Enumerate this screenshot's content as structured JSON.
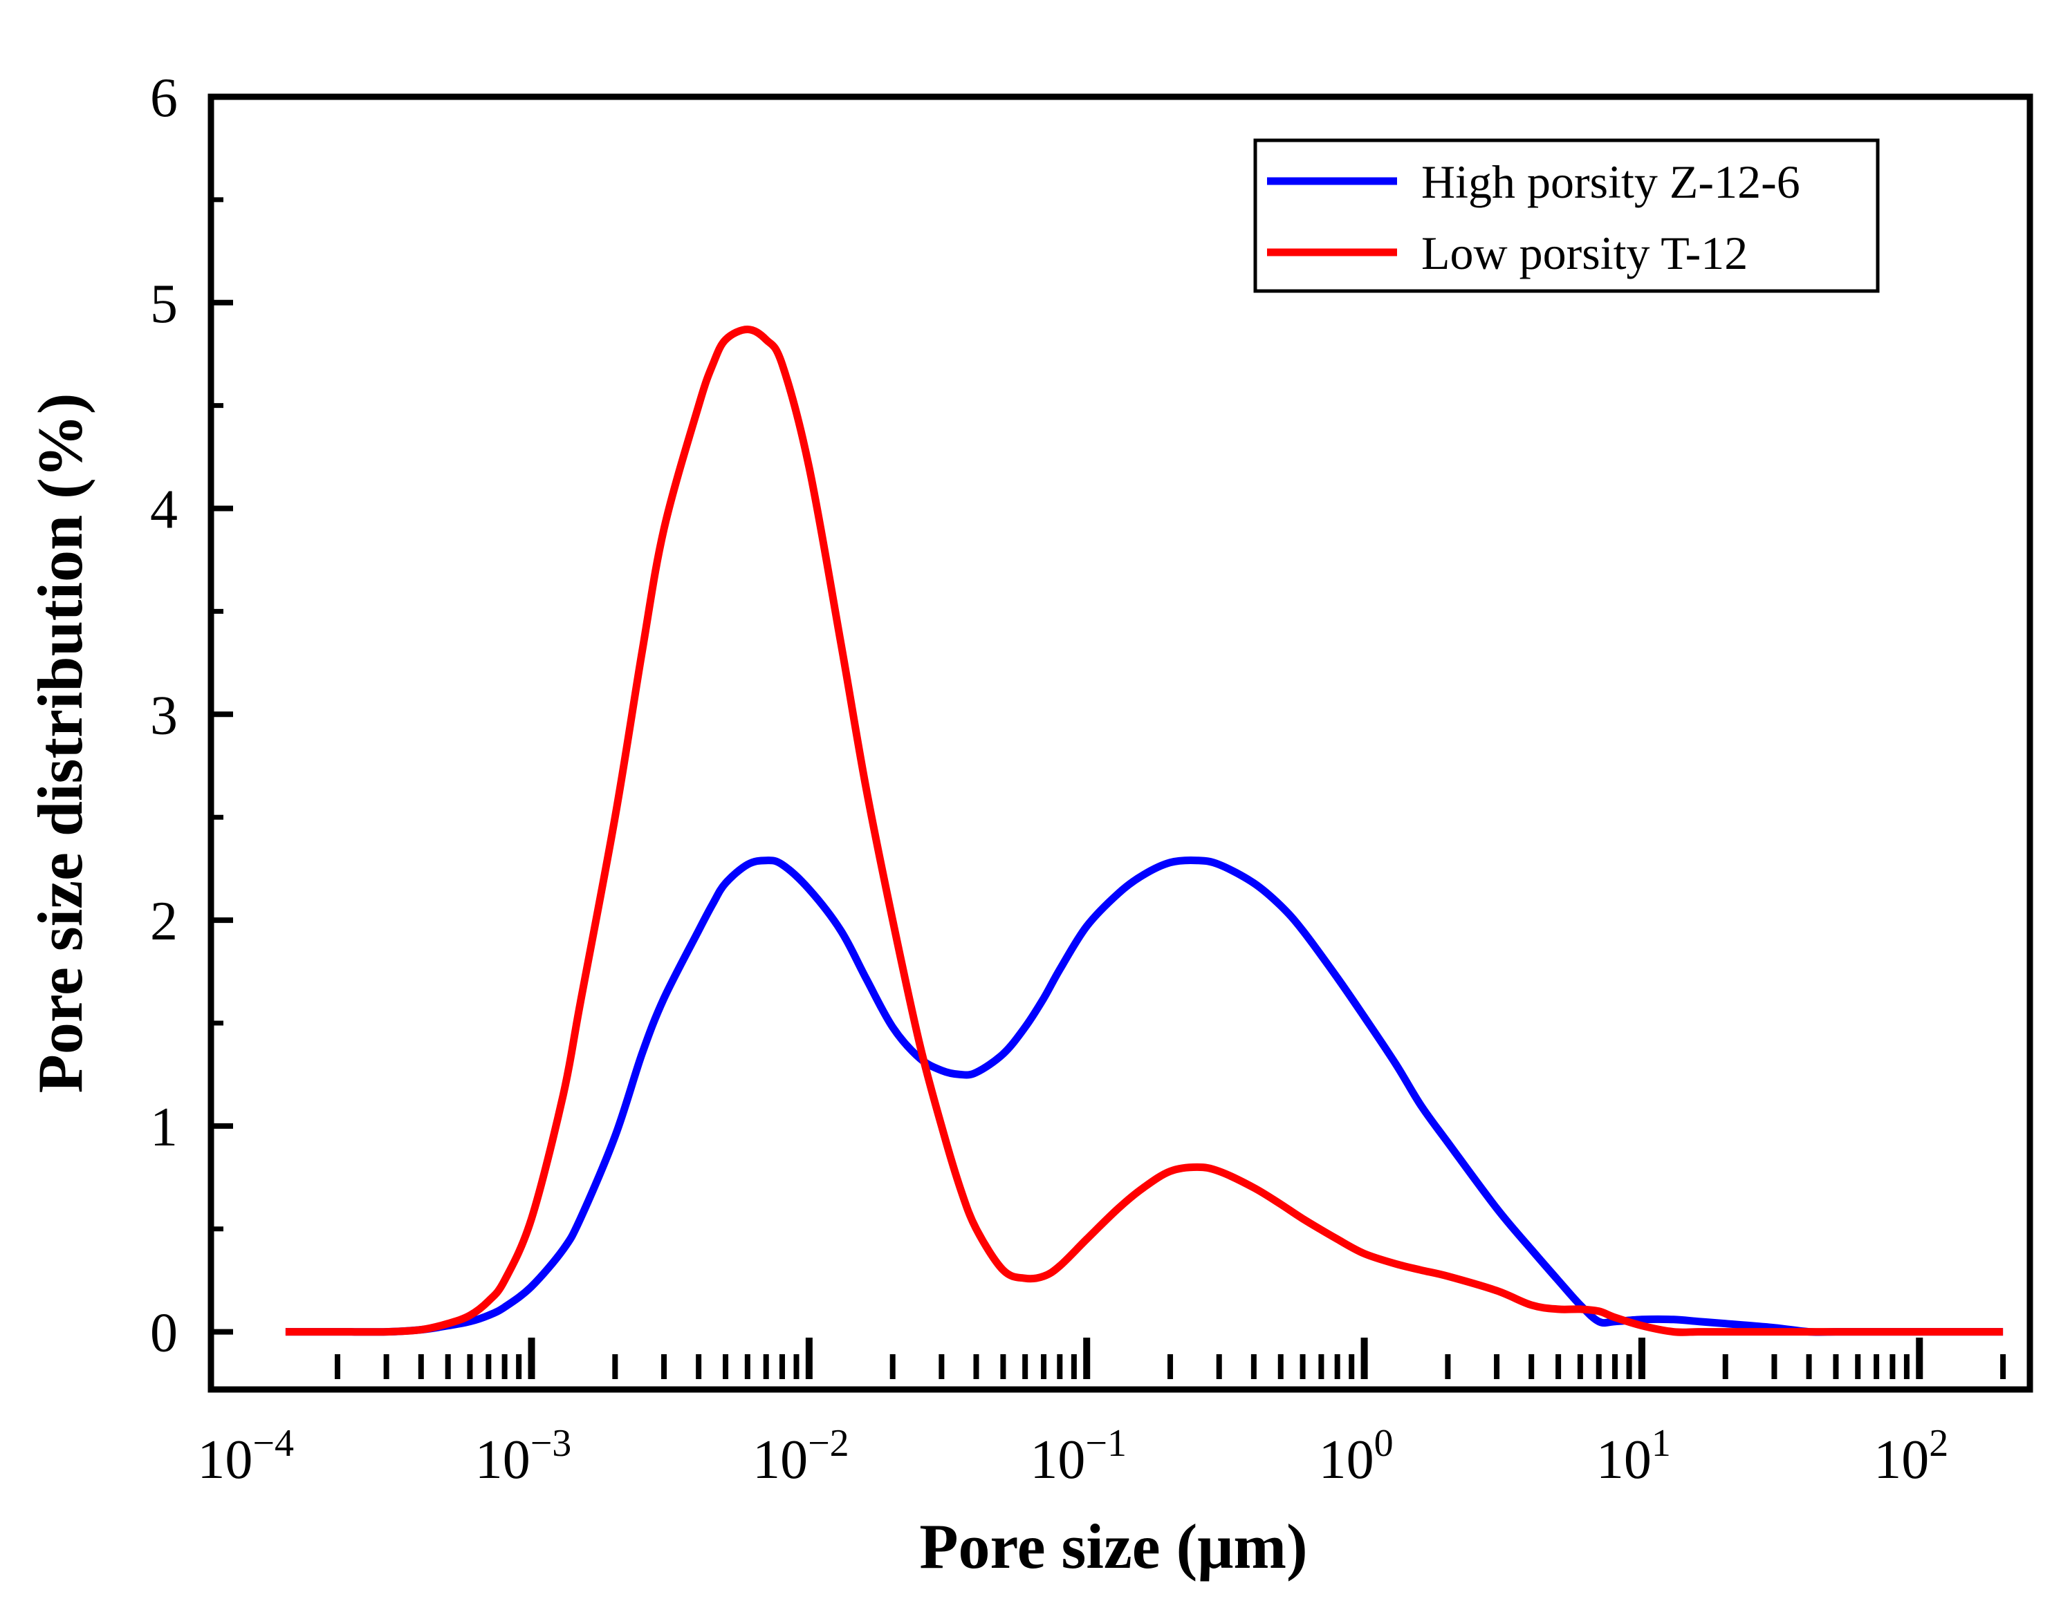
{
  "chart_data": {
    "type": "line",
    "xscale": "log",
    "xlabel": "Pore size (μm)",
    "ylabel": "Pore size distribution (%)",
    "xlim": [
      7e-05,
      250
    ],
    "ylim": [
      -0.28,
      6
    ],
    "y_ticks": [
      0,
      1,
      2,
      3,
      4,
      5,
      6
    ],
    "x_ticks": [
      {
        "base": "10",
        "exp": "−4"
      },
      {
        "base": "10",
        "exp": "−3"
      },
      {
        "base": "10",
        "exp": "−2"
      },
      {
        "base": "10",
        "exp": "−1"
      },
      {
        "base": "10",
        "exp": "0"
      },
      {
        "base": "10",
        "exp": "1"
      },
      {
        "base": "10",
        "exp": "2"
      }
    ],
    "legend_position": "top-right",
    "series": [
      {
        "name": "High porsity Z-12-6",
        "color": "#0000ff",
        "x": [
          0.00013,
          0.0002,
          0.0003,
          0.0004,
          0.0005,
          0.0006,
          0.0007,
          0.0008,
          0.001,
          0.0013,
          0.0015,
          0.002,
          0.0025,
          0.003,
          0.004,
          0.0045,
          0.005,
          0.006,
          0.007,
          0.008,
          0.01,
          0.013,
          0.016,
          0.02,
          0.025,
          0.03,
          0.035,
          0.04,
          0.05,
          0.06,
          0.07,
          0.08,
          0.1,
          0.13,
          0.16,
          0.2,
          0.25,
          0.3,
          0.4,
          0.5,
          0.6,
          0.8,
          1,
          1.3,
          1.6,
          2,
          3,
          4,
          5,
          6,
          7,
          8,
          10,
          13,
          16,
          20,
          30,
          40,
          50,
          60,
          100,
          150,
          200
        ],
        "y": [
          0,
          0,
          0,
          0.01,
          0.03,
          0.05,
          0.08,
          0.12,
          0.22,
          0.4,
          0.55,
          0.95,
          1.35,
          1.62,
          1.95,
          2.08,
          2.18,
          2.27,
          2.29,
          2.27,
          2.15,
          1.95,
          1.72,
          1.48,
          1.33,
          1.27,
          1.25,
          1.26,
          1.35,
          1.48,
          1.62,
          1.76,
          1.97,
          2.13,
          2.22,
          2.28,
          2.29,
          2.27,
          2.18,
          2.07,
          1.95,
          1.72,
          1.53,
          1.3,
          1.1,
          0.92,
          0.6,
          0.4,
          0.25,
          0.13,
          0.05,
          0.05,
          0.06,
          0.06,
          0.05,
          0.04,
          0.02,
          0,
          0,
          0,
          0,
          0,
          0
        ]
      },
      {
        "name": "Low porsity T-12",
        "color": "#ff0000",
        "x": [
          0.00013,
          0.0002,
          0.0003,
          0.0004,
          0.0005,
          0.0006,
          0.0007,
          0.0008,
          0.001,
          0.0013,
          0.0015,
          0.002,
          0.0025,
          0.003,
          0.004,
          0.0045,
          0.005,
          0.006,
          0.007,
          0.008,
          0.01,
          0.013,
          0.016,
          0.02,
          0.025,
          0.03,
          0.035,
          0.04,
          0.05,
          0.06,
          0.07,
          0.08,
          0.1,
          0.13,
          0.16,
          0.2,
          0.25,
          0.3,
          0.4,
          0.5,
          0.6,
          0.8,
          1,
          1.3,
          1.6,
          2,
          3,
          4,
          5,
          6,
          7,
          8,
          10,
          13,
          16,
          20,
          30,
          40,
          50,
          60,
          100,
          150,
          200
        ],
        "y": [
          0,
          0,
          0,
          0.01,
          0.04,
          0.08,
          0.15,
          0.25,
          0.55,
          1.15,
          1.6,
          2.5,
          3.3,
          3.9,
          4.5,
          4.7,
          4.82,
          4.87,
          4.82,
          4.7,
          4.2,
          3.35,
          2.65,
          2.0,
          1.4,
          1.0,
          0.7,
          0.5,
          0.3,
          0.26,
          0.27,
          0.32,
          0.45,
          0.6,
          0.7,
          0.78,
          0.8,
          0.78,
          0.7,
          0.62,
          0.55,
          0.45,
          0.38,
          0.33,
          0.3,
          0.27,
          0.2,
          0.13,
          0.11,
          0.11,
          0.1,
          0.07,
          0.03,
          0,
          0,
          0,
          0,
          0,
          0,
          0,
          0,
          0,
          0
        ]
      }
    ]
  }
}
